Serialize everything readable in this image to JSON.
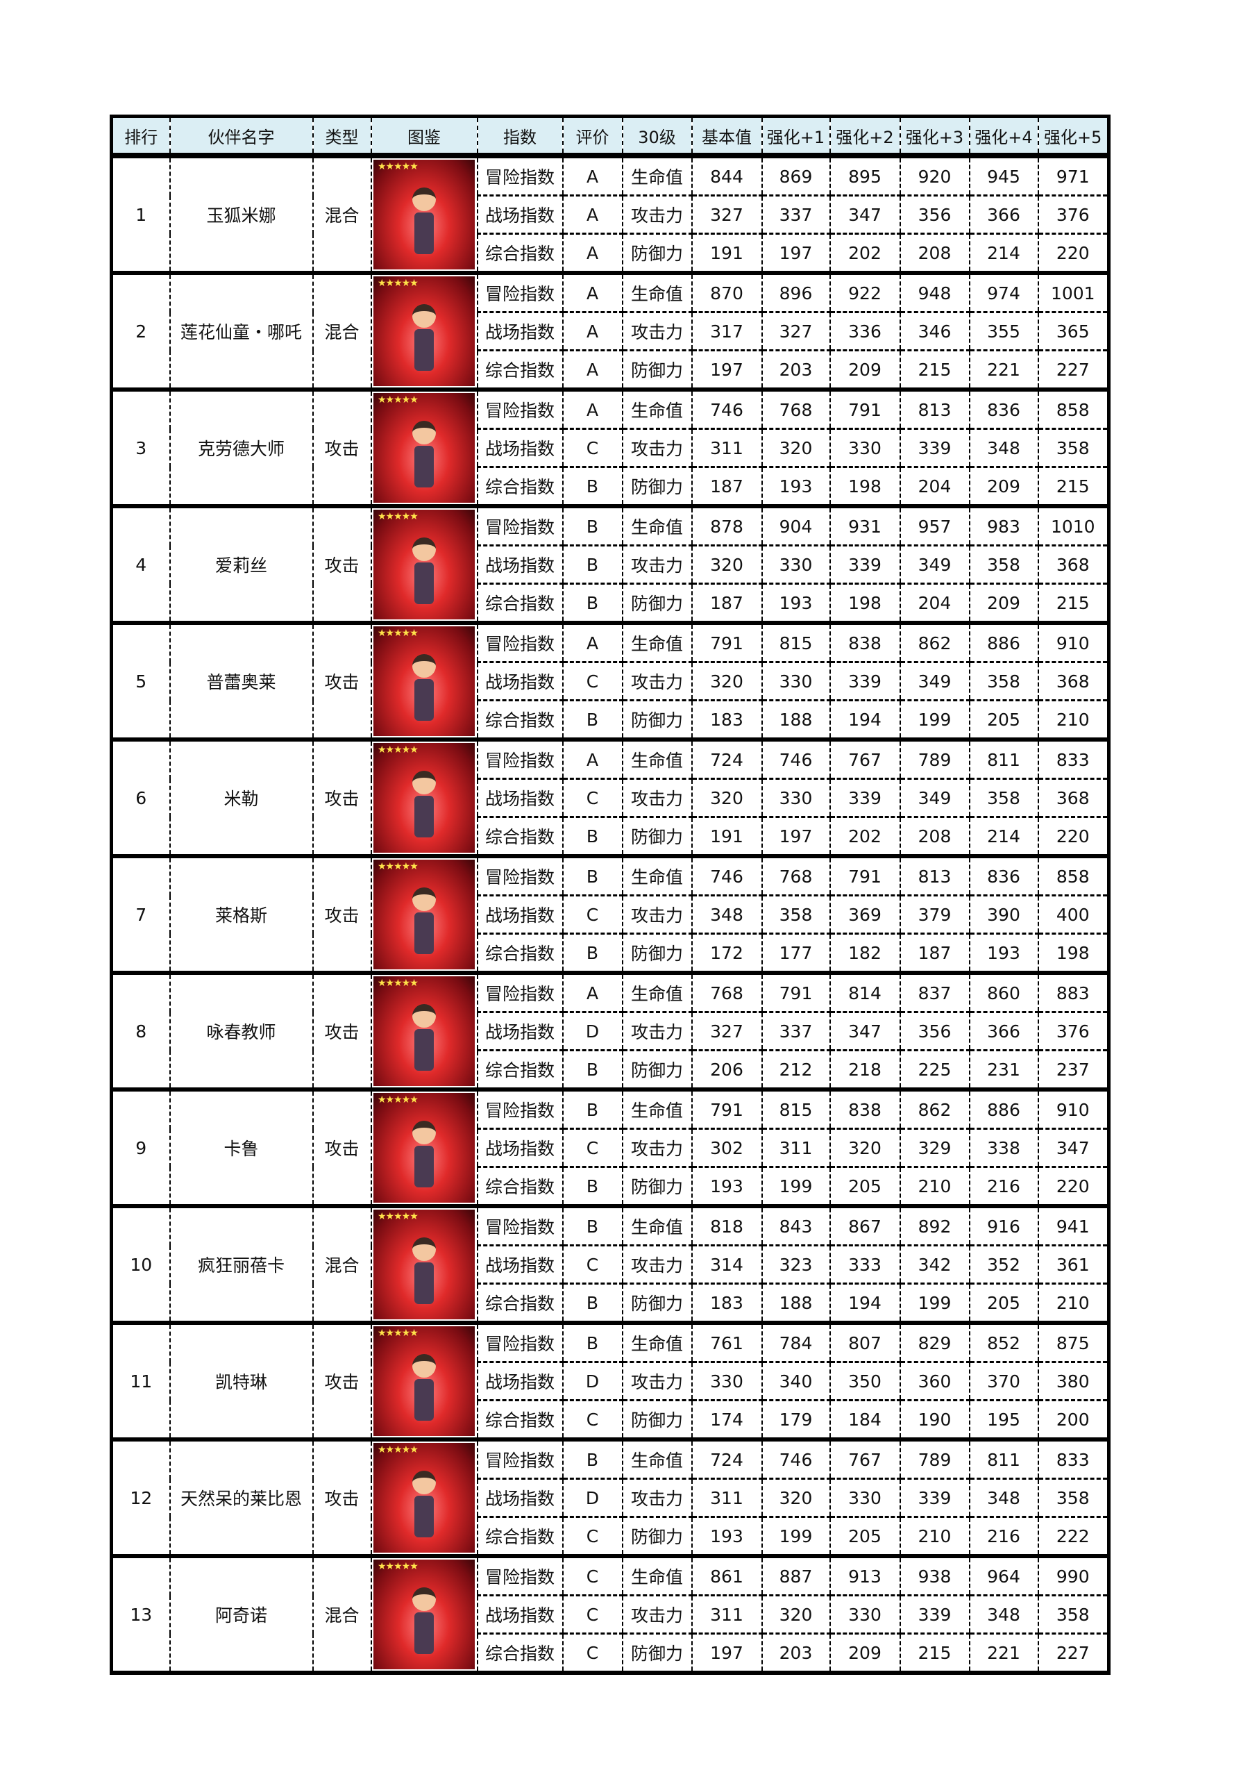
{
  "headers": [
    "排行",
    "伙伴名字",
    "类型",
    "图鉴",
    "指数",
    "评价",
    "30级",
    "基本值",
    "强化+1",
    "强化+2",
    "强化+3",
    "强化+4",
    "强化+5"
  ],
  "index_labels": [
    "冒险指数",
    "战场指数",
    "综合指数"
  ],
  "stat_labels": [
    "生命值",
    "攻击力",
    "防御力"
  ],
  "stars": "★★★★★",
  "rows": [
    {
      "rank": "1",
      "name": "玉狐米娜",
      "type": "混合",
      "grades": [
        "A",
        "A",
        "A"
      ],
      "values": [
        [
          "844",
          "869",
          "895",
          "920",
          "945",
          "971"
        ],
        [
          "327",
          "337",
          "347",
          "356",
          "366",
          "376"
        ],
        [
          "191",
          "197",
          "202",
          "208",
          "214",
          "220"
        ]
      ]
    },
    {
      "rank": "2",
      "name": "莲花仙童・哪吒",
      "type": "混合",
      "grades": [
        "A",
        "A",
        "A"
      ],
      "values": [
        [
          "870",
          "896",
          "922",
          "948",
          "974",
          "1001"
        ],
        [
          "317",
          "327",
          "336",
          "346",
          "355",
          "365"
        ],
        [
          "197",
          "203",
          "209",
          "215",
          "221",
          "227"
        ]
      ]
    },
    {
      "rank": "3",
      "name": "克劳德大师",
      "type": "攻击",
      "grades": [
        "A",
        "C",
        "B"
      ],
      "values": [
        [
          "746",
          "768",
          "791",
          "813",
          "836",
          "858"
        ],
        [
          "311",
          "320",
          "330",
          "339",
          "348",
          "358"
        ],
        [
          "187",
          "193",
          "198",
          "204",
          "209",
          "215"
        ]
      ]
    },
    {
      "rank": "4",
      "name": "爱莉丝",
      "type": "攻击",
      "grades": [
        "B",
        "B",
        "B"
      ],
      "values": [
        [
          "878",
          "904",
          "931",
          "957",
          "983",
          "1010"
        ],
        [
          "320",
          "330",
          "339",
          "349",
          "358",
          "368"
        ],
        [
          "187",
          "193",
          "198",
          "204",
          "209",
          "215"
        ]
      ]
    },
    {
      "rank": "5",
      "name": "普蕾奥莱",
      "type": "攻击",
      "grades": [
        "A",
        "C",
        "B"
      ],
      "values": [
        [
          "791",
          "815",
          "838",
          "862",
          "886",
          "910"
        ],
        [
          "320",
          "330",
          "339",
          "349",
          "358",
          "368"
        ],
        [
          "183",
          "188",
          "194",
          "199",
          "205",
          "210"
        ]
      ]
    },
    {
      "rank": "6",
      "name": "米勒",
      "type": "攻击",
      "grades": [
        "A",
        "C",
        "B"
      ],
      "values": [
        [
          "724",
          "746",
          "767",
          "789",
          "811",
          "833"
        ],
        [
          "320",
          "330",
          "339",
          "349",
          "358",
          "368"
        ],
        [
          "191",
          "197",
          "202",
          "208",
          "214",
          "220"
        ]
      ]
    },
    {
      "rank": "7",
      "name": "莱格斯",
      "type": "攻击",
      "grades": [
        "B",
        "C",
        "B"
      ],
      "values": [
        [
          "746",
          "768",
          "791",
          "813",
          "836",
          "858"
        ],
        [
          "348",
          "358",
          "369",
          "379",
          "390",
          "400"
        ],
        [
          "172",
          "177",
          "182",
          "187",
          "193",
          "198"
        ]
      ]
    },
    {
      "rank": "8",
      "name": "咏春教师",
      "type": "攻击",
      "grades": [
        "A",
        "D",
        "B"
      ],
      "values": [
        [
          "768",
          "791",
          "814",
          "837",
          "860",
          "883"
        ],
        [
          "327",
          "337",
          "347",
          "356",
          "366",
          "376"
        ],
        [
          "206",
          "212",
          "218",
          "225",
          "231",
          "237"
        ]
      ]
    },
    {
      "rank": "9",
      "name": "卡鲁",
      "type": "攻击",
      "grades": [
        "B",
        "C",
        "B"
      ],
      "values": [
        [
          "791",
          "815",
          "838",
          "862",
          "886",
          "910"
        ],
        [
          "302",
          "311",
          "320",
          "329",
          "338",
          "347"
        ],
        [
          "193",
          "199",
          "205",
          "210",
          "216",
          "220"
        ]
      ]
    },
    {
      "rank": "10",
      "name": "疯狂丽蓓卡",
      "type": "混合",
      "grades": [
        "B",
        "C",
        "B"
      ],
      "values": [
        [
          "818",
          "843",
          "867",
          "892",
          "916",
          "941"
        ],
        [
          "314",
          "323",
          "333",
          "342",
          "352",
          "361"
        ],
        [
          "183",
          "188",
          "194",
          "199",
          "205",
          "210"
        ]
      ]
    },
    {
      "rank": "11",
      "name": "凯特琳",
      "type": "攻击",
      "grades": [
        "B",
        "D",
        "C"
      ],
      "values": [
        [
          "761",
          "784",
          "807",
          "829",
          "852",
          "875"
        ],
        [
          "330",
          "340",
          "350",
          "360",
          "370",
          "380"
        ],
        [
          "174",
          "179",
          "184",
          "190",
          "195",
          "200"
        ]
      ]
    },
    {
      "rank": "12",
      "name": "天然呆的莱比恩",
      "type": "攻击",
      "grades": [
        "B",
        "D",
        "C"
      ],
      "values": [
        [
          "724",
          "746",
          "767",
          "789",
          "811",
          "833"
        ],
        [
          "311",
          "320",
          "330",
          "339",
          "348",
          "358"
        ],
        [
          "193",
          "199",
          "205",
          "210",
          "216",
          "222"
        ]
      ]
    },
    {
      "rank": "13",
      "name": "阿奇诺",
      "type": "混合",
      "grades": [
        "C",
        "C",
        "C"
      ],
      "values": [
        [
          "861",
          "887",
          "913",
          "938",
          "964",
          "990"
        ],
        [
          "311",
          "320",
          "330",
          "339",
          "348",
          "358"
        ],
        [
          "197",
          "203",
          "209",
          "215",
          "221",
          "227"
        ]
      ]
    }
  ]
}
